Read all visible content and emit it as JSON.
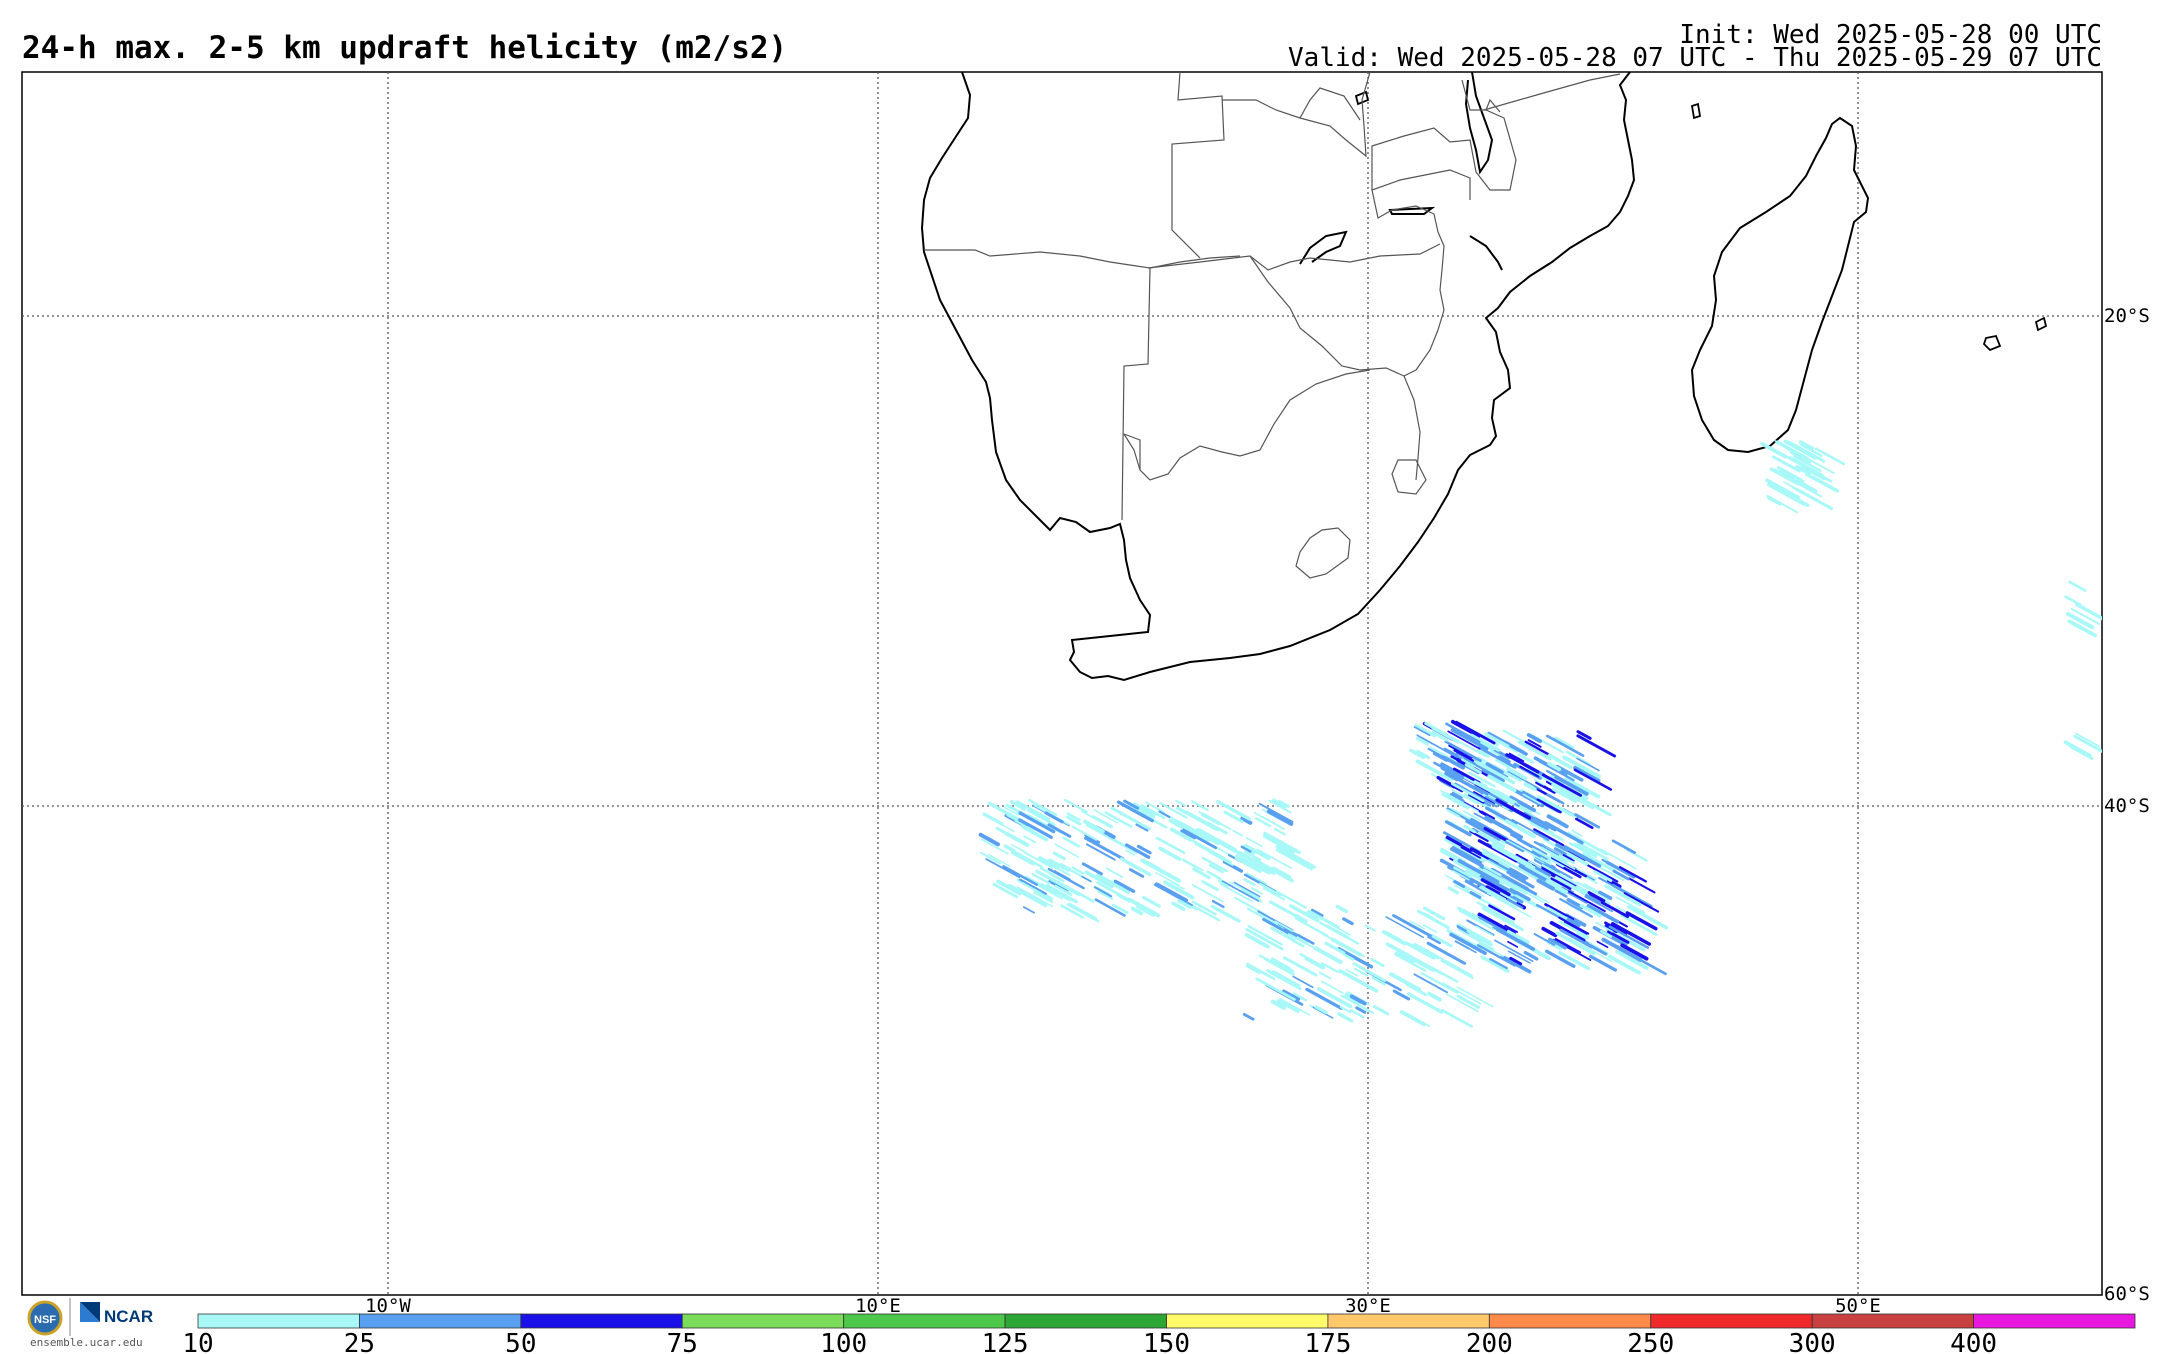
{
  "header": {
    "title": "24-h max. 2-5 km updraft helicity (m2/s2)",
    "init": "Init: Wed 2025-05-28 00 UTC",
    "valid": "Valid: Wed 2025-05-28 07 UTC - Thu 2025-05-29 07 UTC"
  },
  "map": {
    "lat_labels": [
      "20°S",
      "40°S",
      "60°S"
    ],
    "lon_labels": [
      "10°W",
      "10°E",
      "30°E",
      "50°E"
    ],
    "grid_style": "dotted"
  },
  "colorbar": {
    "ticks": [
      "10",
      "25",
      "50",
      "75",
      "100",
      "125",
      "150",
      "175",
      "200",
      "250",
      "300",
      "400"
    ],
    "colors": [
      "#a8f8f8",
      "#5aa0f0",
      "#1a10e8",
      "#7adc5a",
      "#4ec84a",
      "#2ea636",
      "#fffa6a",
      "#ffc86a",
      "#ff8a4a",
      "#f02a2a",
      "#c84040",
      "#e818e0"
    ]
  },
  "logos": {
    "org": "NCAR",
    "site": "ensemble.ucar.edu"
  }
}
